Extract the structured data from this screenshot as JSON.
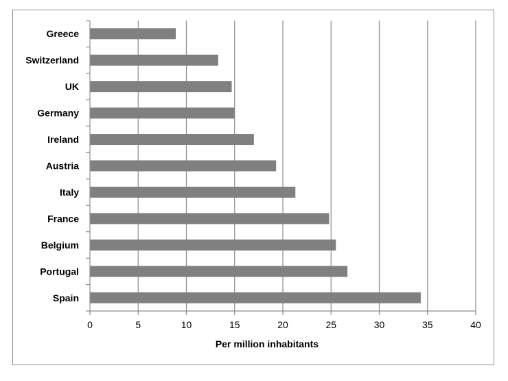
{
  "chart_data": {
    "type": "bar",
    "orientation": "horizontal",
    "categories": [
      "Greece",
      "Switzerland",
      "UK",
      "Germany",
      "Ireland",
      "Austria",
      "Italy",
      "France",
      "Belgium",
      "Portugal",
      "Spain"
    ],
    "values": [
      8.9,
      13.3,
      14.7,
      15.0,
      17.0,
      19.3,
      21.3,
      24.8,
      25.5,
      26.7,
      34.3
    ],
    "title": "",
    "xlabel": "Per million inhabitants",
    "ylabel": "",
    "xlim": [
      0,
      40
    ],
    "xticks": [
      "0",
      "5",
      "10",
      "15",
      "20",
      "25",
      "30",
      "35",
      "40"
    ],
    "grid": "vertical",
    "legend": "none",
    "bar_color": "#808080",
    "grid_color": "#8c8c8c"
  }
}
